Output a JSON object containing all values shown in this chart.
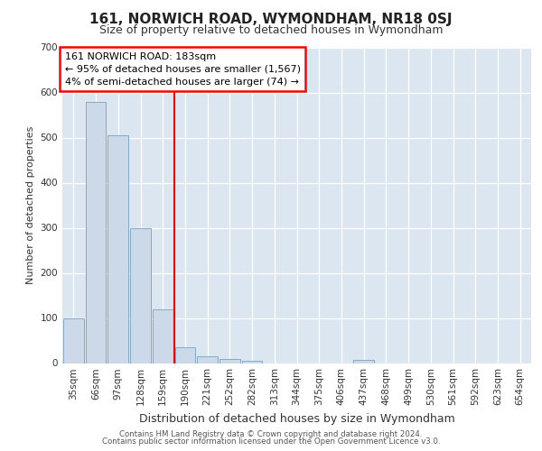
{
  "title": "161, NORWICH ROAD, WYMONDHAM, NR18 0SJ",
  "subtitle": "Size of property relative to detached houses in Wymondham",
  "xlabel": "Distribution of detached houses by size in Wymondham",
  "ylabel": "Number of detached properties",
  "bar_color": "#ccd9e8",
  "bar_edge_color": "#7aa0c0",
  "categories": [
    "35sqm",
    "66sqm",
    "97sqm",
    "128sqm",
    "159sqm",
    "190sqm",
    "221sqm",
    "252sqm",
    "282sqm",
    "313sqm",
    "344sqm",
    "375sqm",
    "406sqm",
    "437sqm",
    "468sqm",
    "499sqm",
    "530sqm",
    "561sqm",
    "592sqm",
    "623sqm",
    "654sqm"
  ],
  "values": [
    100,
    580,
    505,
    300,
    120,
    35,
    15,
    10,
    5,
    0,
    0,
    0,
    0,
    7,
    0,
    0,
    0,
    0,
    0,
    0,
    0
  ],
  "vline_idx": 5,
  "annotation_lines": [
    "161 NORWICH ROAD: 183sqm",
    "← 95% of detached houses are smaller (1,567)",
    "4% of semi-detached houses are larger (74) →"
  ],
  "ylim": [
    0,
    700
  ],
  "yticks": [
    0,
    100,
    200,
    300,
    400,
    500,
    600,
    700
  ],
  "plot_bg_color": "#dce6f0",
  "footer_line1": "Contains HM Land Registry data © Crown copyright and database right 2024.",
  "footer_line2": "Contains public sector information licensed under the Open Government Licence v3.0."
}
